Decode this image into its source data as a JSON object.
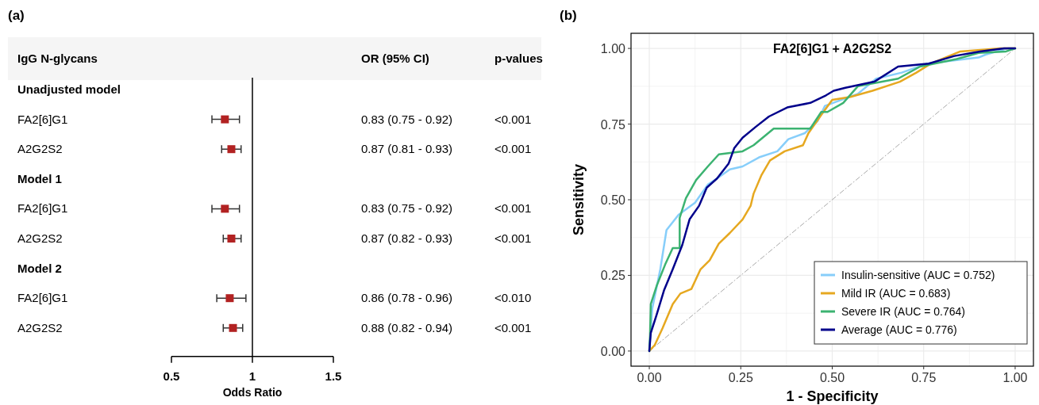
{
  "chart_data": [
    {
      "type": "scatter",
      "orientation": "horizontal",
      "xlabel": "Odds Ratio",
      "marker": "square",
      "color": "#b22222",
      "annotations": [
        "(a)",
        "IgG N-glycans",
        "OR (95% CI)",
        "p-values",
        "<0.001",
        "<0.001",
        "<0.001",
        "<0.001",
        "<0.010",
        "<0.001"
      ],
      "categories": [
        "Unadjusted model",
        "FA2[6]G1",
        "A2G2S2",
        "Model 1",
        "FA2[6]G1",
        "A2G2S2",
        "Model 2",
        "FA2[6]G1",
        "A2G2S2"
      ],
      "values": [
        null,
        0.83,
        0.87,
        null,
        0.83,
        0.87,
        null,
        0.86,
        0.88
      ],
      "errors": [
        null,
        [
          0.75,
          0.92
        ],
        [
          0.81,
          0.93
        ],
        null,
        [
          0.75,
          0.92
        ],
        [
          0.82,
          0.93
        ],
        null,
        [
          0.78,
          0.96
        ],
        [
          0.82,
          0.94
        ]
      ],
      "value_labels": [
        null,
        "0.83 (0.75 - 0.92)",
        "0.87 (0.81 - 0.93)",
        null,
        "0.83 (0.75 - 0.92)",
        "0.87 (0.82 - 0.93)",
        null,
        "0.86 (0.78 - 0.96)",
        "0.88 (0.82 - 0.94)"
      ],
      "xlim": [
        0.5,
        1.5
      ],
      "xticks": [
        0.5,
        1,
        1.5
      ],
      "ref_lines": [
        {
          "axis": "x",
          "value": 1
        }
      ]
    },
    {
      "type": "line",
      "title": "FA2[6]G1 + A2G2S2",
      "xlabel": "1 - Specificity",
      "ylabel": "Sensitivity",
      "annotations": [
        "(b)"
      ],
      "xlim": [
        -0.05,
        1.05
      ],
      "ylim": [
        -0.05,
        1.05
      ],
      "xticks": [
        {
          "value": 0,
          "label": "0.00"
        },
        {
          "value": 0.25,
          "label": "0.25"
        },
        {
          "value": 0.5,
          "label": "0.50"
        },
        {
          "value": 0.75,
          "label": "0.75"
        },
        {
          "value": 1,
          "label": "1.00"
        }
      ],
      "yticks": [
        {
          "value": 0,
          "label": "0.00"
        },
        {
          "value": 0.25,
          "label": "0.25"
        },
        {
          "value": 0.5,
          "label": "0.50"
        },
        {
          "value": 0.75,
          "label": "0.75"
        },
        {
          "value": 1,
          "label": "1.00"
        }
      ],
      "grid": true,
      "legend": "bottom right",
      "series": [
        {
          "color": "#aaaaaa",
          "line_style": "dashed",
          "x": [
            0,
            1
          ],
          "values": [
            0,
            1
          ]
        },
        {
          "name": "Insulin-sensitive (AUC = 0.752)",
          "color": "#87cefa",
          "x": [
            0,
            0.008,
            0.03,
            0.047,
            0.08,
            0.125,
            0.16,
            0.185,
            0.22,
            0.255,
            0.3,
            0.35,
            0.38,
            0.425,
            0.46,
            0.48,
            0.57,
            0.62,
            0.69,
            0.76,
            0.9,
            0.92,
            0.98,
            1
          ],
          "values": [
            0,
            0.14,
            0.27,
            0.4,
            0.45,
            0.49,
            0.55,
            0.57,
            0.6,
            0.61,
            0.64,
            0.66,
            0.7,
            0.72,
            0.76,
            0.81,
            0.85,
            0.9,
            0.92,
            0.95,
            0.97,
            0.98,
            1,
            1
          ]
        },
        {
          "name": "Mild IR (AUC = 0.683)",
          "color": "#e6a820",
          "x": [
            0,
            0.015,
            0.036,
            0.064,
            0.085,
            0.115,
            0.14,
            0.165,
            0.19,
            0.22,
            0.255,
            0.277,
            0.285,
            0.306,
            0.33,
            0.37,
            0.42,
            0.435,
            0.47,
            0.5,
            0.55,
            0.61,
            0.685,
            0.73,
            0.77,
            0.85,
            0.96,
            1
          ],
          "values": [
            0,
            0.02,
            0.075,
            0.155,
            0.19,
            0.205,
            0.27,
            0.3,
            0.355,
            0.39,
            0.435,
            0.48,
            0.52,
            0.58,
            0.63,
            0.66,
            0.68,
            0.72,
            0.78,
            0.83,
            0.84,
            0.86,
            0.89,
            0.92,
            0.95,
            0.99,
            1,
            1
          ]
        },
        {
          "name": "Severe IR (AUC = 0.764)",
          "color": "#3cb371",
          "x": [
            0,
            0.002,
            0.004,
            0.02,
            0.043,
            0.064,
            0.083,
            0.083,
            0.1,
            0.128,
            0.16,
            0.19,
            0.255,
            0.285,
            0.34,
            0.44,
            0.47,
            0.487,
            0.53,
            0.57,
            0.68,
            0.74,
            0.84,
            0.9,
            0.975,
            1
          ],
          "values": [
            0,
            0.05,
            0.155,
            0.215,
            0.285,
            0.34,
            0.34,
            0.44,
            0.505,
            0.565,
            0.61,
            0.65,
            0.66,
            0.68,
            0.735,
            0.735,
            0.79,
            0.79,
            0.82,
            0.875,
            0.9,
            0.94,
            0.965,
            0.985,
            0.99,
            1
          ]
        },
        {
          "name": "Average (AUC = 0.776)",
          "color": "#00008b",
          "x": [
            0,
            0.004,
            0.02,
            0.04,
            0.064,
            0.09,
            0.11,
            0.136,
            0.157,
            0.185,
            0.217,
            0.232,
            0.255,
            0.29,
            0.327,
            0.377,
            0.44,
            0.483,
            0.504,
            0.536,
            0.615,
            0.68,
            0.764,
            0.834,
            0.904,
            0.97,
            1
          ],
          "values": [
            0,
            0.06,
            0.12,
            0.2,
            0.27,
            0.35,
            0.435,
            0.48,
            0.54,
            0.57,
            0.62,
            0.67,
            0.705,
            0.74,
            0.775,
            0.805,
            0.82,
            0.845,
            0.86,
            0.87,
            0.89,
            0.94,
            0.95,
            0.975,
            0.99,
            1,
            1
          ]
        }
      ]
    }
  ]
}
